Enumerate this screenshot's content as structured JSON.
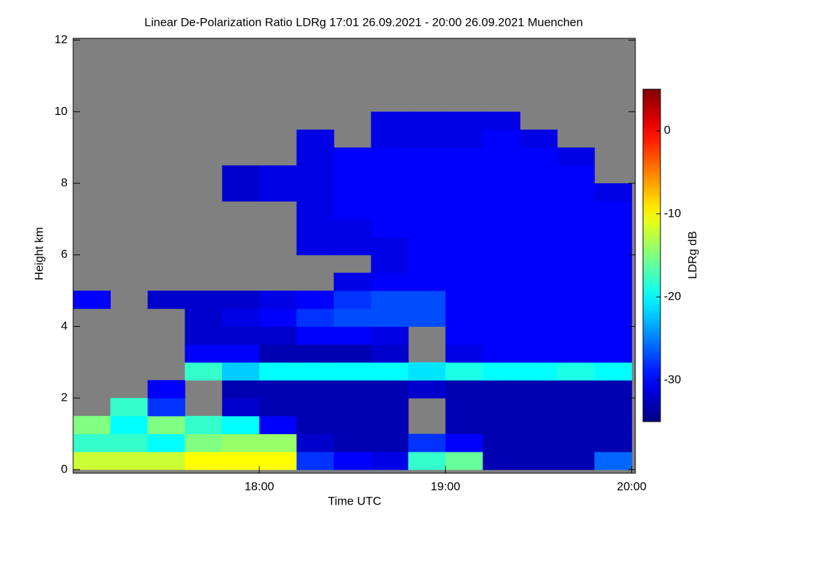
{
  "chart_data": {
    "type": "heatmap",
    "title": "Linear De-Polarization Ratio LDRg   17:01 26.09.2021 - 20:00 26.09.2021 Muenchen",
    "x_label": "Time UTC",
    "y_label": "Height km",
    "colorbar_label": "LDRg dB",
    "x": [
      17.1,
      17.3,
      17.5,
      17.7,
      17.9,
      18.1,
      18.3,
      18.5,
      18.7,
      18.9,
      19.1,
      19.3,
      19.5,
      19.7,
      19.9
    ],
    "y": [
      0.25,
      0.75,
      1.25,
      1.75,
      2.25,
      2.75,
      3.25,
      3.75,
      4.25,
      4.75,
      5.25,
      5.75,
      6.25,
      6.75,
      7.25,
      7.75,
      8.25,
      8.75,
      9.25,
      9.75,
      10.25,
      10.75,
      11.25,
      11.75
    ],
    "z": [
      [
        -12,
        -12,
        -12,
        -10,
        -10,
        -10,
        -28,
        -30,
        -31,
        -18,
        -16,
        -33,
        -33,
        -33,
        -26
      ],
      [
        -18,
        -18,
        -20,
        -15,
        -14,
        -14,
        -32,
        -33,
        -33,
        -28,
        -30,
        -33,
        -33,
        -33,
        -33
      ],
      [
        -15,
        -20,
        -15,
        -18,
        -20,
        -30,
        -33,
        -33,
        -33,
        null,
        -33,
        -33,
        -33,
        -33,
        -33
      ],
      [
        null,
        -18,
        -28,
        null,
        -32,
        -33,
        -33,
        -33,
        -33,
        null,
        -33,
        -33,
        -33,
        -33,
        -33
      ],
      [
        null,
        null,
        -30,
        null,
        -33,
        -33,
        -33,
        -33,
        -33,
        -32,
        -33,
        -33,
        -33,
        -33,
        -33
      ],
      [
        null,
        null,
        null,
        -18,
        -22,
        -20,
        -20,
        -20,
        -20,
        -21,
        -19,
        -20,
        -20,
        -19,
        -20
      ],
      [
        null,
        null,
        null,
        -30,
        -30,
        -33,
        -33,
        -33,
        -32,
        null,
        -31,
        -30,
        -30,
        -30,
        -30
      ],
      [
        null,
        null,
        null,
        -32,
        -32,
        -32,
        -30,
        -30,
        -31,
        null,
        -30,
        -30,
        -30,
        -30,
        -30
      ],
      [
        null,
        null,
        null,
        -32,
        -31,
        -30,
        -28,
        -27,
        -27,
        -27,
        -30,
        -30,
        -30,
        -30,
        -30
      ],
      [
        -30,
        null,
        -32,
        -32,
        -32,
        -31,
        -30,
        -28,
        -27,
        -27,
        -30,
        -30,
        -30,
        -30,
        -30
      ],
      [
        null,
        null,
        null,
        null,
        null,
        null,
        null,
        -31,
        -30,
        -30,
        -30,
        -30,
        -30,
        -30,
        -30
      ],
      [
        null,
        null,
        null,
        null,
        null,
        null,
        null,
        null,
        -31,
        -30,
        -30,
        -30,
        -30,
        -30,
        -30
      ],
      [
        null,
        null,
        null,
        null,
        null,
        null,
        -31,
        -31,
        -31,
        -30,
        -30,
        -30,
        -30,
        -30,
        -30
      ],
      [
        null,
        null,
        null,
        null,
        null,
        null,
        -31,
        -31,
        -30,
        -30,
        -30,
        -30,
        -30,
        -30,
        -30
      ],
      [
        null,
        null,
        null,
        null,
        null,
        null,
        -31,
        -30,
        -30,
        -30,
        -30,
        -30,
        -30,
        -30,
        -30
      ],
      [
        null,
        null,
        null,
        null,
        -32,
        -31,
        -31,
        -30,
        -30,
        -30,
        -30,
        -30,
        -30,
        -30,
        -31
      ],
      [
        null,
        null,
        null,
        null,
        -32,
        -31,
        -31,
        -30,
        -30,
        -30,
        -30,
        -30,
        -30,
        -30,
        null
      ],
      [
        null,
        null,
        null,
        null,
        null,
        null,
        -31,
        -30,
        -30,
        -30,
        -30,
        -30,
        -30,
        -31,
        null
      ],
      [
        null,
        null,
        null,
        null,
        null,
        null,
        -31,
        null,
        -31,
        -31,
        -31,
        -30,
        -31,
        null,
        null
      ],
      [
        null,
        null,
        null,
        null,
        null,
        null,
        null,
        null,
        -31,
        -31,
        -31,
        -31,
        null,
        null,
        null
      ],
      [
        null,
        null,
        null,
        null,
        null,
        null,
        null,
        null,
        null,
        null,
        null,
        null,
        null,
        null,
        null
      ],
      [
        null,
        null,
        null,
        null,
        null,
        null,
        null,
        null,
        null,
        null,
        null,
        null,
        null,
        null,
        null
      ],
      [
        null,
        null,
        null,
        null,
        null,
        null,
        null,
        null,
        null,
        null,
        null,
        null,
        null,
        null,
        null
      ],
      [
        null,
        null,
        null,
        null,
        null,
        null,
        null,
        null,
        null,
        null,
        null,
        null,
        null,
        null,
        null
      ]
    ],
    "xlim": [
      17.0,
      20.02
    ],
    "xticks": [
      {
        "value": 18,
        "label": "18:00"
      },
      {
        "value": 19,
        "label": "19:00"
      },
      {
        "value": 20,
        "label": "20:00"
      }
    ],
    "ylim": [
      -0.1,
      12.05
    ],
    "yticks": [
      0,
      2,
      4,
      6,
      8,
      10,
      12
    ],
    "zlim": [
      -35,
      5
    ],
    "zticks": [
      -30,
      -20,
      -10,
      0
    ],
    "colormap": "jet",
    "missing_color": "#808080"
  }
}
